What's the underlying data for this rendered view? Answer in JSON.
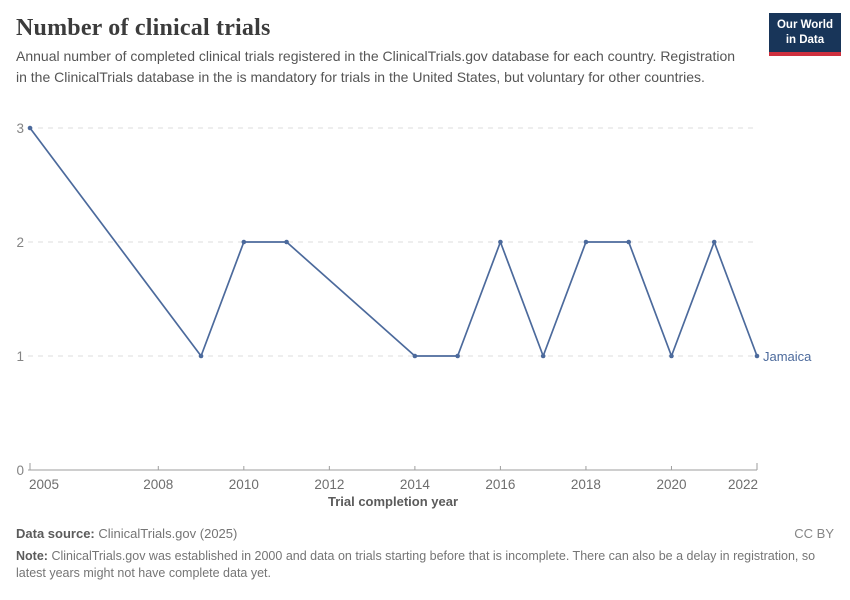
{
  "header": {
    "title": "Number of clinical trials",
    "subtitle": "Annual number of completed clinical trials registered in the ClinicalTrials.gov database for each country. Registration in the ClinicalTrials database in the is mandatory for trials in the United States, but voluntary for other countries.",
    "logo": {
      "line1": "Our World",
      "line2": "in Data"
    }
  },
  "chart_data": {
    "type": "line",
    "title": "Number of clinical trials",
    "xlabel": "Trial completion year",
    "ylabel": "",
    "x": [
      2005,
      2009,
      2010,
      2011,
      2014,
      2015,
      2016,
      2017,
      2018,
      2019,
      2020,
      2021,
      2022
    ],
    "series": [
      {
        "name": "Jamaica",
        "color": "#4c6a9c",
        "values": [
          3,
          1,
          2,
          2,
          1,
          1,
          2,
          1,
          2,
          2,
          1,
          2,
          1
        ]
      }
    ],
    "xticks": [
      2005,
      2008,
      2010,
      2012,
      2014,
      2016,
      2018,
      2020,
      2022
    ],
    "yticks": [
      0,
      1,
      2,
      3
    ],
    "xlim": [
      2005,
      2022
    ],
    "ylim": [
      0,
      3
    ],
    "grid": "horizontal-dashed",
    "legend": "end-of-line-label"
  },
  "footer": {
    "source_label": "Data source:",
    "source_value": "ClinicalTrials.gov (2025)",
    "license": "CC BY",
    "note_label": "Note:",
    "note_value": "ClinicalTrials.gov was established in 2000 and data on trials starting before that is incomplete. There can also be a delay in registration, so latest years might not have complete data yet."
  },
  "colors": {
    "line": "#4c6a9c",
    "logo_bg": "#183559",
    "logo_accent": "#cf303e",
    "grid": "#dedede",
    "axis": "#9e9e9e"
  }
}
